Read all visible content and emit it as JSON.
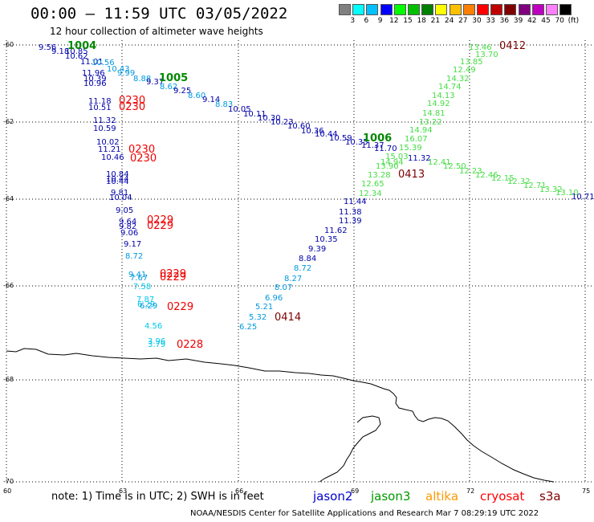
{
  "title": "00:00 – 11:59 UTC 03/05/2022",
  "subtitle": "12 hour collection of altimeter wave heights",
  "colorbar": {
    "colors": [
      "#808080",
      "#00ffff",
      "#00c0ff",
      "#0000ff",
      "#00ff00",
      "#00c000",
      "#008000",
      "#ffff00",
      "#ffc000",
      "#ff8000",
      "#ff0000",
      "#c00000",
      "#800000",
      "#800080",
      "#c000c0",
      "#ff80ff",
      "#000000"
    ],
    "labels": [
      "3",
      "6",
      "9",
      "12",
      "15",
      "18",
      "21",
      "24",
      "27",
      "30",
      "33",
      "36",
      "39",
      "42",
      "45",
      "70",
      "(ft)"
    ]
  },
  "axes": {
    "lat_labels": [
      "-60",
      "-62",
      "-64",
      "-66",
      "-68",
      "-70"
    ],
    "lon_labels": [
      "60",
      "63",
      "66",
      "69",
      "72",
      "75"
    ]
  },
  "footer": {
    "note": "note: 1) Time is in UTC; 2) SWH is in feet",
    "legend": [
      {
        "name": "jason2",
        "color": "#0000cc"
      },
      {
        "name": "jason3",
        "color": "#009900"
      },
      {
        "name": "altika",
        "color": "#ff9900"
      },
      {
        "name": "cryosat",
        "color": "#ff0000"
      },
      {
        "name": "s3a",
        "color": "#800000"
      }
    ],
    "credit": "NOAA/NESDIS Center for Satellite Applications and Research   Mar  7 08:29:19 UTC 2022"
  },
  "tracks": {
    "jason3": {
      "time_labels": [
        "1004",
        "1005",
        "1006"
      ],
      "values": [
        "9.56",
        "9.18",
        "10.85",
        "10.62",
        "11.01",
        "10.56",
        "10.43",
        "11.96",
        "10.39",
        "10.96",
        "9.99",
        "8.88",
        "9.37",
        "8.62",
        "9.25",
        "8.60",
        "9.14",
        "8.83",
        "10.05",
        "10.11",
        "10.30",
        "10.23",
        "10.60",
        "10.36",
        "10.44",
        "10.59",
        "10.35",
        "11.37",
        "11.70",
        "11.32"
      ]
    },
    "cryosat": {
      "time_labels": [
        "0230",
        "0230",
        "0230",
        "0230",
        "0229",
        "0229",
        "0229",
        "0229",
        "0229",
        "0228"
      ],
      "values": [
        "11.18",
        "10.51",
        "11.32",
        "10.59",
        "10.02",
        "11.21",
        "10.46",
        "10.84",
        "10.44",
        "10.44",
        "9.81",
        "10.04",
        "9.05",
        "9.64",
        "9.82",
        "9.06",
        "9.17",
        "8.72",
        "9.41",
        "7.67",
        "7.58",
        "7.87",
        "6.29",
        "6.29",
        "4.56",
        "3.96",
        "3.79"
      ]
    },
    "s3a_a": {
      "time_labels": [
        "0412",
        "0413"
      ],
      "values": [
        "13.46",
        "13.70",
        "13.85",
        "12.49",
        "14.32",
        "14.74",
        "14.13",
        "14.92",
        "14.81",
        "13.22",
        "14.94",
        "16.07",
        "15.39",
        "15.03",
        "14.94",
        "13.90",
        "13.28",
        "12.65",
        "12.34",
        "12.41",
        "12.50",
        "12.23",
        "12.46",
        "12.15",
        "12.32",
        "12.71",
        "13.32",
        "13.10",
        "10.71"
      ]
    },
    "s3a_b": {
      "time_labels": [
        "0414"
      ],
      "values": [
        "11.44",
        "11.38",
        "11.39",
        "11.62",
        "10.35",
        "9.39",
        "8.84",
        "8.72",
        "8.27",
        "8.07",
        "6.96",
        "5.21",
        "5.32",
        "6.25"
      ]
    }
  }
}
